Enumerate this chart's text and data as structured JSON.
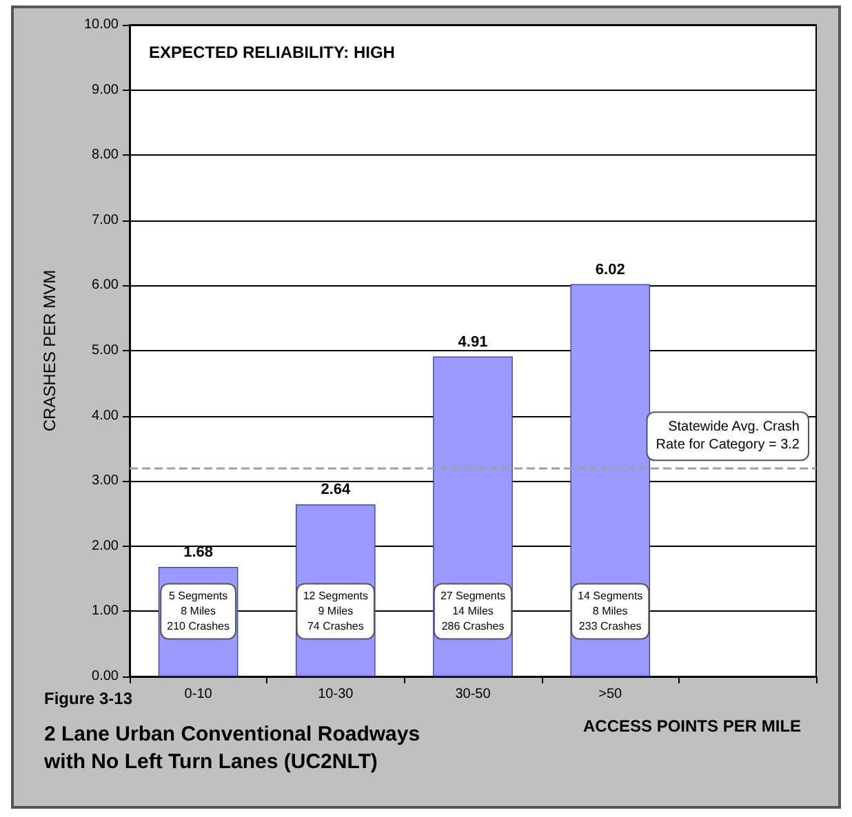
{
  "chart_data": {
    "type": "bar",
    "title": "2 Lane Urban Conventional Roadways\nwith No Left Turn Lanes (UC2NLT)",
    "xlabel": "ACCESS POINTS PER MILE",
    "ylabel": "CRASHES PER MVM",
    "categories": [
      "0-10",
      "10-30",
      "30-50",
      ">50",
      null
    ],
    "values": [
      1.68,
      2.64,
      4.91,
      6.02,
      null
    ],
    "color": "#9999ff",
    "data_labels": true,
    "ylim": [
      0,
      10
    ],
    "yticks": [
      {
        "value": 0,
        "label": "0.00"
      },
      {
        "value": 1,
        "label": "1.00"
      },
      {
        "value": 2,
        "label": "2.00"
      },
      {
        "value": 3,
        "label": "3.00"
      },
      {
        "value": 4,
        "label": "4.00"
      },
      {
        "value": 5,
        "label": "5.00"
      },
      {
        "value": 6,
        "label": "6.00"
      },
      {
        "value": 7,
        "label": "7.00"
      },
      {
        "value": 8,
        "label": "8.00"
      },
      {
        "value": 9,
        "label": "9.00"
      },
      {
        "value": 10,
        "label": "10.00"
      }
    ],
    "grid": "y",
    "ref_lines": [
      {
        "axis": "y",
        "value": 3.2,
        "label": "Statewide Avg. Crash\nRate for Category = 3.2",
        "color": "#a0a0a0",
        "line_style": "dashed"
      }
    ],
    "annotations": [
      "EXPECTED RELIABILITY: HIGH",
      "Figure 3-13",
      "5 Segments\n8 Miles\n210 Crashes",
      "12 Segments\n9 Miles\n74 Crashes",
      "27 Segments\n14 Miles\n286 Crashes",
      "14 Segments\n8 Miles\n233 Crashes"
    ]
  }
}
